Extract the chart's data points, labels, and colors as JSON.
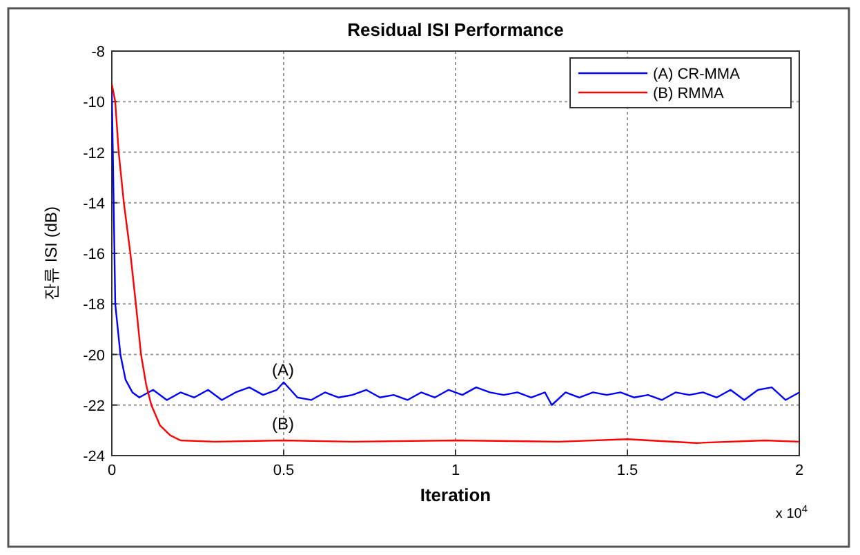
{
  "chart_data": {
    "type": "line",
    "title": "Residual ISI Performance",
    "xlabel": "Iteration",
    "ylabel": "잔류 ISI (dB)",
    "xlim": [
      0,
      2
    ],
    "xticks": [
      0,
      0.5,
      1,
      1.5,
      2
    ],
    "ylim": [
      -24,
      -8
    ],
    "yticks": [
      -24,
      -22,
      -20,
      -18,
      -16,
      -14,
      -12,
      -10,
      -8
    ],
    "grid": true,
    "legend": "top right",
    "line_style": "solid",
    "marker": "none",
    "annotations": [
      "(A)",
      "(B)",
      "x 10$^{4}$"
    ],
    "series": [
      {
        "name": "(A) CR-MMA",
        "color": "#0000ff",
        "x": [
          0,
          0.003,
          0.01,
          0.025,
          0.04,
          0.06,
          0.08,
          0.12,
          0.16,
          0.2,
          0.24,
          0.28,
          0.32,
          0.36,
          0.4,
          0.44,
          0.48,
          0.5,
          0.54,
          0.58,
          0.62,
          0.66,
          0.7,
          0.74,
          0.78,
          0.82,
          0.86,
          0.9,
          0.94,
          0.98,
          1.02,
          1.06,
          1.1,
          1.14,
          1.18,
          1.22,
          1.26,
          1.28,
          1.32,
          1.36,
          1.4,
          1.44,
          1.48,
          1.52,
          1.56,
          1.6,
          1.64,
          1.68,
          1.72,
          1.76,
          1.8,
          1.84,
          1.88,
          1.92,
          1.96,
          2
        ],
        "values": [
          -9.6,
          -12,
          -18,
          -20,
          -21,
          -21.5,
          -21.7,
          -21.4,
          -21.8,
          -21.5,
          -21.7,
          -21.4,
          -21.8,
          -21.5,
          -21.3,
          -21.6,
          -21.4,
          -21.1,
          -21.7,
          -21.8,
          -21.5,
          -21.7,
          -21.6,
          -21.4,
          -21.7,
          -21.6,
          -21.8,
          -21.5,
          -21.7,
          -21.4,
          -21.6,
          -21.3,
          -21.5,
          -21.6,
          -21.5,
          -21.7,
          -21.5,
          -22,
          -21.5,
          -21.7,
          -21.5,
          -21.6,
          -21.5,
          -21.7,
          -21.6,
          -21.8,
          -21.5,
          -21.6,
          -21.5,
          -21.7,
          -21.4,
          -21.8,
          -21.4,
          -21.3,
          -21.8,
          -21.5
        ]
      },
      {
        "name": "(B) RMMA",
        "color": "#ff0000",
        "x": [
          0,
          0.01,
          0.02,
          0.035,
          0.054,
          0.07,
          0.085,
          0.1,
          0.115,
          0.14,
          0.17,
          0.2,
          0.3,
          0.5,
          0.7,
          1,
          1.3,
          1.5,
          1.7,
          1.9,
          2
        ],
        "values": [
          -9.3,
          -10,
          -12,
          -14,
          -16,
          -18,
          -20,
          -21.2,
          -22,
          -22.8,
          -23.2,
          -23.4,
          -23.45,
          -23.4,
          -23.45,
          -23.4,
          -23.45,
          -23.35,
          -23.5,
          -23.4,
          -23.45
        ]
      }
    ]
  }
}
